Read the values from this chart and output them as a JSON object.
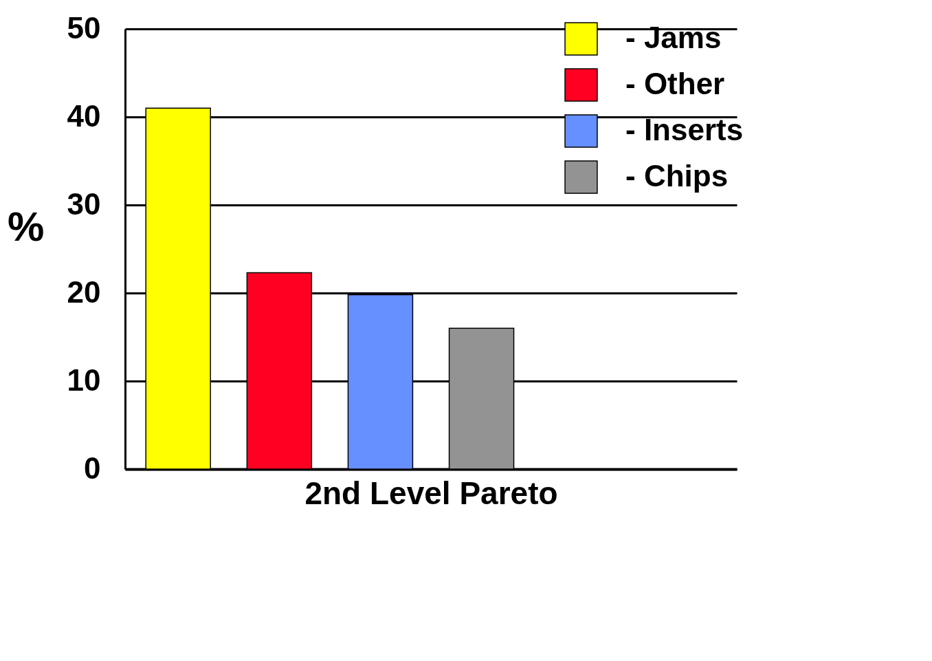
{
  "chart_data": {
    "type": "bar",
    "xlabel": "2nd  Level Pareto",
    "ylabel": "%",
    "categories": [
      null,
      null,
      null,
      null,
      null,
      null
    ],
    "series": [
      {
        "name": "- Jams",
        "color": "#ffff00",
        "values": [
          41,
          null,
          null,
          null,
          null,
          null
        ]
      },
      {
        "name": "- Other",
        "color": "#ff0022",
        "values": [
          null,
          22.3,
          null,
          null,
          null,
          null
        ]
      },
      {
        "name": "- Inserts",
        "color": "#6690ff",
        "values": [
          null,
          null,
          19.8,
          null,
          null,
          null
        ]
      },
      {
        "name": "- Chips",
        "color": "#939393",
        "values": [
          null,
          null,
          null,
          16,
          null,
          null
        ]
      }
    ],
    "ylim": [
      0,
      50
    ],
    "yticks": [
      0,
      10,
      20,
      30,
      40,
      50
    ],
    "grid": "y",
    "legend": "top right"
  }
}
